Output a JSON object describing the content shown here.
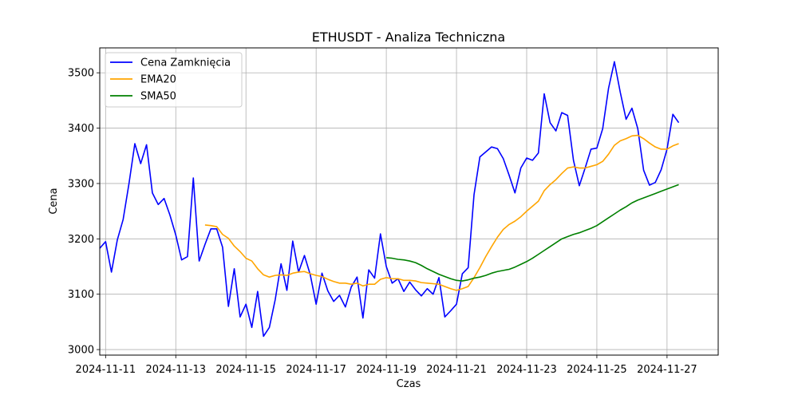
{
  "chart_data": {
    "type": "line",
    "title": "ETHUSDT - Analiza Techniczna",
    "xlabel": "Czas",
    "ylabel": "Cena",
    "x_range": [
      "2024-11-10T20:00",
      "2024-11-28T11:00"
    ],
    "ylim": [
      2990,
      3545
    ],
    "x_ticks": [
      "2024-11-11",
      "2024-11-13",
      "2024-11-15",
      "2024-11-17",
      "2024-11-19",
      "2024-11-21",
      "2024-11-23",
      "2024-11-25",
      "2024-11-27"
    ],
    "y_ticks": [
      3000,
      3100,
      3200,
      3300,
      3400,
      3500
    ],
    "grid": true,
    "legend_position": "top-left",
    "series": [
      {
        "name": "Cena Zamknięcia",
        "color": "#0000ff",
        "points": [
          [
            "2024-11-10T20:00",
            3183
          ],
          [
            "2024-11-11T00:00",
            3195
          ],
          [
            "2024-11-11T04:00",
            3140
          ],
          [
            "2024-11-11T08:00",
            3198
          ],
          [
            "2024-11-11T12:00",
            3235
          ],
          [
            "2024-11-11T16:00",
            3300
          ],
          [
            "2024-11-11T20:00",
            3372
          ],
          [
            "2024-11-12T00:00",
            3336
          ],
          [
            "2024-11-12T04:00",
            3370
          ],
          [
            "2024-11-12T08:00",
            3283
          ],
          [
            "2024-11-12T12:00",
            3262
          ],
          [
            "2024-11-12T16:00",
            3273
          ],
          [
            "2024-11-12T20:00",
            3243
          ],
          [
            "2024-11-13T00:00",
            3207
          ],
          [
            "2024-11-13T04:00",
            3162
          ],
          [
            "2024-11-13T08:00",
            3168
          ],
          [
            "2024-11-13T12:00",
            3310
          ],
          [
            "2024-11-13T16:00",
            3160
          ],
          [
            "2024-11-13T20:00",
            3190
          ],
          [
            "2024-11-14T00:00",
            3218
          ],
          [
            "2024-11-14T04:00",
            3218
          ],
          [
            "2024-11-14T08:00",
            3185
          ],
          [
            "2024-11-14T12:00",
            3078
          ],
          [
            "2024-11-14T16:00",
            3146
          ],
          [
            "2024-11-14T20:00",
            3059
          ],
          [
            "2024-11-15T00:00",
            3082
          ],
          [
            "2024-11-15T04:00",
            3040
          ],
          [
            "2024-11-15T08:00",
            3105
          ],
          [
            "2024-11-15T12:00",
            3024
          ],
          [
            "2024-11-15T16:00",
            3040
          ],
          [
            "2024-11-15T20:00",
            3090
          ],
          [
            "2024-11-16T00:00",
            3155
          ],
          [
            "2024-11-16T04:00",
            3107
          ],
          [
            "2024-11-16T08:00",
            3196
          ],
          [
            "2024-11-16T12:00",
            3140
          ],
          [
            "2024-11-16T16:00",
            3170
          ],
          [
            "2024-11-16T20:00",
            3135
          ],
          [
            "2024-11-17T00:00",
            3082
          ],
          [
            "2024-11-17T04:00",
            3138
          ],
          [
            "2024-11-17T08:00",
            3106
          ],
          [
            "2024-11-17T12:00",
            3087
          ],
          [
            "2024-11-17T16:00",
            3098
          ],
          [
            "2024-11-17T20:00",
            3077
          ],
          [
            "2024-11-18T00:00",
            3113
          ],
          [
            "2024-11-18T04:00",
            3131
          ],
          [
            "2024-11-18T08:00",
            3057
          ],
          [
            "2024-11-18T12:00",
            3144
          ],
          [
            "2024-11-18T16:00",
            3129
          ],
          [
            "2024-11-18T20:00",
            3209
          ],
          [
            "2024-11-19T00:00",
            3150
          ],
          [
            "2024-11-19T04:00",
            3120
          ],
          [
            "2024-11-19T08:00",
            3128
          ],
          [
            "2024-11-19T12:00",
            3105
          ],
          [
            "2024-11-19T16:00",
            3122
          ],
          [
            "2024-11-19T20:00",
            3108
          ],
          [
            "2024-11-20T00:00",
            3097
          ],
          [
            "2024-11-20T04:00",
            3110
          ],
          [
            "2024-11-20T08:00",
            3100
          ],
          [
            "2024-11-20T12:00",
            3130
          ],
          [
            "2024-11-20T16:00",
            3059
          ],
          [
            "2024-11-20T20:00",
            3070
          ],
          [
            "2024-11-21T00:00",
            3082
          ],
          [
            "2024-11-21T04:00",
            3137
          ],
          [
            "2024-11-21T08:00",
            3148
          ],
          [
            "2024-11-21T12:00",
            3280
          ],
          [
            "2024-11-21T16:00",
            3348
          ],
          [
            "2024-11-21T20:00",
            3357
          ],
          [
            "2024-11-22T00:00",
            3366
          ],
          [
            "2024-11-22T04:00",
            3363
          ],
          [
            "2024-11-22T08:00",
            3345
          ],
          [
            "2024-11-22T12:00",
            3315
          ],
          [
            "2024-11-22T16:00",
            3283
          ],
          [
            "2024-11-22T20:00",
            3328
          ],
          [
            "2024-11-23T00:00",
            3346
          ],
          [
            "2024-11-23T04:00",
            3342
          ],
          [
            "2024-11-23T08:00",
            3355
          ],
          [
            "2024-11-23T12:00",
            3462
          ],
          [
            "2024-11-23T16:00",
            3410
          ],
          [
            "2024-11-23T20:00",
            3395
          ],
          [
            "2024-11-24T00:00",
            3428
          ],
          [
            "2024-11-24T04:00",
            3423
          ],
          [
            "2024-11-24T08:00",
            3342
          ],
          [
            "2024-11-24T12:00",
            3296
          ],
          [
            "2024-11-24T16:00",
            3328
          ],
          [
            "2024-11-24T20:00",
            3362
          ],
          [
            "2024-11-25T00:00",
            3364
          ],
          [
            "2024-11-25T04:00",
            3399
          ],
          [
            "2024-11-25T08:00",
            3472
          ],
          [
            "2024-11-25T12:00",
            3520
          ],
          [
            "2024-11-25T16:00",
            3465
          ],
          [
            "2024-11-25T20:00",
            3416
          ],
          [
            "2024-11-26T00:00",
            3436
          ],
          [
            "2024-11-26T04:00",
            3399
          ],
          [
            "2024-11-26T08:00",
            3324
          ],
          [
            "2024-11-26T12:00",
            3297
          ],
          [
            "2024-11-26T16:00",
            3302
          ],
          [
            "2024-11-26T20:00",
            3325
          ],
          [
            "2024-11-27T00:00",
            3362
          ],
          [
            "2024-11-27T04:00",
            3425
          ],
          [
            "2024-11-27T08:00",
            3410
          ]
        ]
      },
      {
        "name": "EMA20",
        "color": "#ffa500",
        "points": [
          [
            "2024-11-13T20:00",
            3225
          ],
          [
            "2024-11-14T00:00",
            3224
          ],
          [
            "2024-11-14T04:00",
            3222
          ],
          [
            "2024-11-14T08:00",
            3208
          ],
          [
            "2024-11-14T12:00",
            3201
          ],
          [
            "2024-11-14T16:00",
            3187
          ],
          [
            "2024-11-14T20:00",
            3177
          ],
          [
            "2024-11-15T00:00",
            3165
          ],
          [
            "2024-11-15T04:00",
            3160
          ],
          [
            "2024-11-15T08:00",
            3146
          ],
          [
            "2024-11-15T12:00",
            3135
          ],
          [
            "2024-11-15T16:00",
            3131
          ],
          [
            "2024-11-15T20:00",
            3134
          ],
          [
            "2024-11-16T00:00",
            3135
          ],
          [
            "2024-11-16T04:00",
            3134
          ],
          [
            "2024-11-16T08:00",
            3138
          ],
          [
            "2024-11-16T12:00",
            3140
          ],
          [
            "2024-11-16T16:00",
            3141
          ],
          [
            "2024-11-16T20:00",
            3137
          ],
          [
            "2024-11-17T00:00",
            3134
          ],
          [
            "2024-11-17T04:00",
            3132
          ],
          [
            "2024-11-17T08:00",
            3127
          ],
          [
            "2024-11-17T12:00",
            3123
          ],
          [
            "2024-11-17T16:00",
            3120
          ],
          [
            "2024-11-17T20:00",
            3120
          ],
          [
            "2024-11-18T00:00",
            3118
          ],
          [
            "2024-11-18T04:00",
            3120
          ],
          [
            "2024-11-18T08:00",
            3115
          ],
          [
            "2024-11-18T12:00",
            3118
          ],
          [
            "2024-11-18T16:00",
            3118
          ],
          [
            "2024-11-18T20:00",
            3127
          ],
          [
            "2024-11-19T00:00",
            3130
          ],
          [
            "2024-11-19T04:00",
            3128
          ],
          [
            "2024-11-19T08:00",
            3128
          ],
          [
            "2024-11-19T12:00",
            3125
          ],
          [
            "2024-11-19T16:00",
            3125
          ],
          [
            "2024-11-19T20:00",
            3124
          ],
          [
            "2024-11-20T00:00",
            3121
          ],
          [
            "2024-11-20T04:00",
            3120
          ],
          [
            "2024-11-20T08:00",
            3119
          ],
          [
            "2024-11-20T12:00",
            3118
          ],
          [
            "2024-11-20T16:00",
            3114
          ],
          [
            "2024-11-20T20:00",
            3110
          ],
          [
            "2024-11-21T00:00",
            3107
          ],
          [
            "2024-11-21T04:00",
            3110
          ],
          [
            "2024-11-21T08:00",
            3114
          ],
          [
            "2024-11-21T12:00",
            3130
          ],
          [
            "2024-11-21T16:00",
            3148
          ],
          [
            "2024-11-21T20:00",
            3168
          ],
          [
            "2024-11-22T00:00",
            3186
          ],
          [
            "2024-11-22T04:00",
            3203
          ],
          [
            "2024-11-22T08:00",
            3217
          ],
          [
            "2024-11-22T12:00",
            3226
          ],
          [
            "2024-11-22T16:00",
            3232
          ],
          [
            "2024-11-22T20:00",
            3240
          ],
          [
            "2024-11-23T00:00",
            3250
          ],
          [
            "2024-11-23T04:00",
            3259
          ],
          [
            "2024-11-23T08:00",
            3268
          ],
          [
            "2024-11-23T12:00",
            3287
          ],
          [
            "2024-11-23T16:00",
            3298
          ],
          [
            "2024-11-23T20:00",
            3307
          ],
          [
            "2024-11-24T00:00",
            3318
          ],
          [
            "2024-11-24T04:00",
            3328
          ],
          [
            "2024-11-24T08:00",
            3330
          ],
          [
            "2024-11-24T12:00",
            3328
          ],
          [
            "2024-11-24T16:00",
            3328
          ],
          [
            "2024-11-24T20:00",
            3331
          ],
          [
            "2024-11-25T00:00",
            3334
          ],
          [
            "2024-11-25T04:00",
            3340
          ],
          [
            "2024-11-25T08:00",
            3353
          ],
          [
            "2024-11-25T12:00",
            3369
          ],
          [
            "2024-11-25T16:00",
            3377
          ],
          [
            "2024-11-25T20:00",
            3381
          ],
          [
            "2024-11-26T00:00",
            3386
          ],
          [
            "2024-11-26T04:00",
            3387
          ],
          [
            "2024-11-26T08:00",
            3381
          ],
          [
            "2024-11-26T12:00",
            3373
          ],
          [
            "2024-11-26T16:00",
            3366
          ],
          [
            "2024-11-26T20:00",
            3362
          ],
          [
            "2024-11-27T00:00",
            3362
          ],
          [
            "2024-11-27T04:00",
            3368
          ],
          [
            "2024-11-27T08:00",
            3372
          ]
        ]
      },
      {
        "name": "SMA50",
        "color": "#008000",
        "points": [
          [
            "2024-11-19T00:00",
            3166
          ],
          [
            "2024-11-19T04:00",
            3165
          ],
          [
            "2024-11-19T08:00",
            3163
          ],
          [
            "2024-11-19T12:00",
            3162
          ],
          [
            "2024-11-19T16:00",
            3160
          ],
          [
            "2024-11-19T20:00",
            3157
          ],
          [
            "2024-11-20T00:00",
            3152
          ],
          [
            "2024-11-20T04:00",
            3146
          ],
          [
            "2024-11-20T08:00",
            3141
          ],
          [
            "2024-11-20T12:00",
            3136
          ],
          [
            "2024-11-20T16:00",
            3132
          ],
          [
            "2024-11-20T20:00",
            3128
          ],
          [
            "2024-11-21T00:00",
            3125
          ],
          [
            "2024-11-21T04:00",
            3124
          ],
          [
            "2024-11-21T08:00",
            3126
          ],
          [
            "2024-11-21T12:00",
            3129
          ],
          [
            "2024-11-21T16:00",
            3131
          ],
          [
            "2024-11-21T20:00",
            3134
          ],
          [
            "2024-11-22T00:00",
            3138
          ],
          [
            "2024-11-22T04:00",
            3141
          ],
          [
            "2024-11-22T08:00",
            3143
          ],
          [
            "2024-11-22T12:00",
            3145
          ],
          [
            "2024-11-22T16:00",
            3149
          ],
          [
            "2024-11-22T20:00",
            3154
          ],
          [
            "2024-11-23T00:00",
            3159
          ],
          [
            "2024-11-23T04:00",
            3165
          ],
          [
            "2024-11-23T08:00",
            3172
          ],
          [
            "2024-11-23T12:00",
            3179
          ],
          [
            "2024-11-23T16:00",
            3186
          ],
          [
            "2024-11-23T20:00",
            3193
          ],
          [
            "2024-11-24T00:00",
            3200
          ],
          [
            "2024-11-24T04:00",
            3204
          ],
          [
            "2024-11-24T08:00",
            3208
          ],
          [
            "2024-11-24T12:00",
            3211
          ],
          [
            "2024-11-24T16:00",
            3215
          ],
          [
            "2024-11-24T20:00",
            3219
          ],
          [
            "2024-11-25T00:00",
            3224
          ],
          [
            "2024-11-25T04:00",
            3231
          ],
          [
            "2024-11-25T08:00",
            3238
          ],
          [
            "2024-11-25T12:00",
            3245
          ],
          [
            "2024-11-25T16:00",
            3252
          ],
          [
            "2024-11-25T20:00",
            3258
          ],
          [
            "2024-11-26T00:00",
            3265
          ],
          [
            "2024-11-26T04:00",
            3270
          ],
          [
            "2024-11-26T08:00",
            3274
          ],
          [
            "2024-11-26T12:00",
            3278
          ],
          [
            "2024-11-26T16:00",
            3282
          ],
          [
            "2024-11-26T20:00",
            3286
          ],
          [
            "2024-11-27T00:00",
            3290
          ],
          [
            "2024-11-27T04:00",
            3294
          ],
          [
            "2024-11-27T08:00",
            3298
          ]
        ]
      }
    ]
  }
}
